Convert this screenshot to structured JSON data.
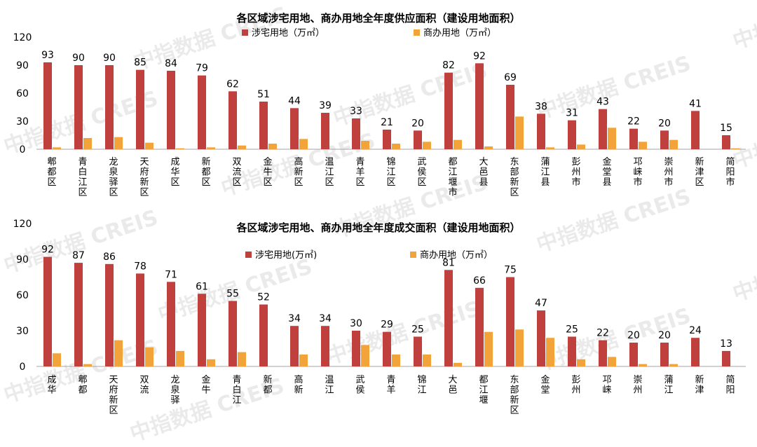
{
  "watermark": "中指数据 CREIS",
  "colors": {
    "residential": "#C0403D",
    "commercial": "#F2A33A",
    "axis": "#A6A6A6",
    "text": "#000000"
  },
  "chart_data": [
    {
      "type": "bar",
      "title": "各区域涉宅用地、商办用地全年度供应面积（建设用地面积）",
      "ylim": [
        0,
        120
      ],
      "yticks": [
        0,
        30,
        60,
        90,
        120
      ],
      "grid": false,
      "legend_position": "top-center",
      "categories": [
        "郫都区",
        "青白江区",
        "龙泉驿区",
        "天府新区",
        "成华区",
        "新都区",
        "双流区",
        "金牛区",
        "高新区",
        "温江区",
        "青羊区",
        "锦江区",
        "武侯区",
        "都江堰市",
        "大邑县",
        "东部新区",
        "蒲江县",
        "彭州市",
        "金堂县",
        "邛崃市",
        "崇州市",
        "新津区",
        "简阳市"
      ],
      "series": [
        {
          "name": "涉宅用地（万㎡）",
          "color": "#C0403D",
          "labels": true,
          "values": [
            93,
            90,
            90,
            85,
            84,
            79,
            62,
            51,
            44,
            39,
            33,
            21,
            20,
            82,
            92,
            69,
            38,
            31,
            43,
            22,
            20,
            41,
            15
          ]
        },
        {
          "name": "商办用地（万㎡）",
          "color": "#F2A33A",
          "labels": false,
          "values": [
            2,
            12,
            13,
            7,
            1,
            2,
            4,
            6,
            11,
            0,
            9,
            6,
            8,
            10,
            3,
            35,
            2,
            5,
            23,
            8,
            10,
            0,
            1
          ]
        }
      ]
    },
    {
      "type": "bar",
      "title": "各区域涉宅用地、商办用地全年度成交面积（建设用地面积）",
      "ylim": [
        0,
        120
      ],
      "yticks": [
        0,
        30,
        60,
        90,
        120
      ],
      "grid": false,
      "legend_position": "top-center",
      "categories": [
        "成华",
        "郫都",
        "天府新区",
        "双流",
        "龙泉驿",
        "金牛",
        "青白江",
        "新都",
        "高新",
        "温江",
        "武侯",
        "青羊",
        "锦江",
        "大邑",
        "都江堰",
        "东部新区",
        "金堂",
        "彭州",
        "邛崃",
        "崇州",
        "蒲江",
        "新津",
        "简阳"
      ],
      "series": [
        {
          "name": "涉宅用地(万㎡)",
          "color": "#C0403D",
          "labels": true,
          "values": [
            92,
            87,
            86,
            78,
            71,
            61,
            55,
            52,
            34,
            34,
            30,
            29,
            25,
            81,
            66,
            75,
            47,
            25,
            22,
            20,
            20,
            24,
            13
          ]
        },
        {
          "name": "商办用地（万㎡）",
          "color": "#F2A33A",
          "labels": false,
          "values": [
            11,
            2,
            22,
            16,
            13,
            6,
            12,
            0,
            10,
            0,
            18,
            10,
            10,
            3,
            29,
            31,
            24,
            6,
            8,
            2,
            2,
            0,
            0
          ]
        }
      ]
    }
  ]
}
